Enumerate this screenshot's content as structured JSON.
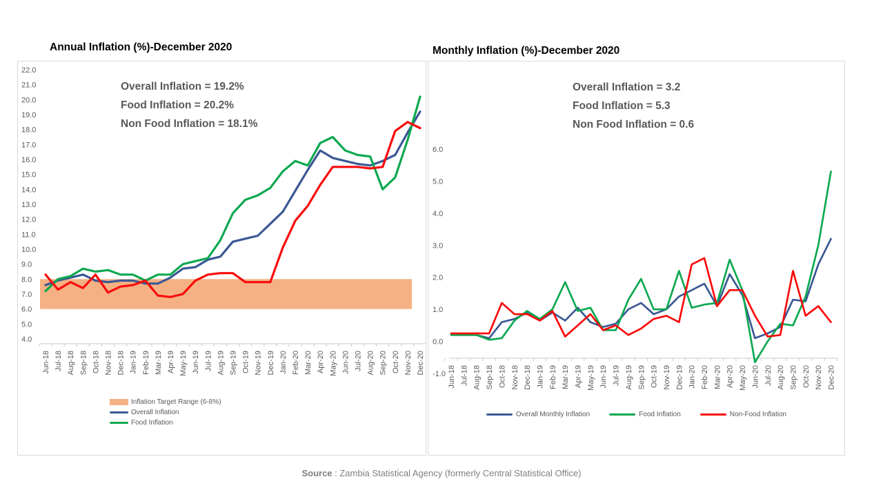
{
  "colors": {
    "overall": "#3A5894",
    "food": "#0DA850",
    "nonfood": "#FA0B0B",
    "band": "#F5B183",
    "axis_text": "#595959",
    "tick": "#C9C9C9",
    "border": "#D9D9D9",
    "annotation_text": "#595959",
    "source_text": "#7F7F7F"
  },
  "source": {
    "label": "Source",
    "text": " : Zambia Statistical Agency (formerly Central Statistical Office)"
  },
  "chart_data": [
    {
      "type": "line",
      "title": "Annual Inflation (%)-December 2020",
      "annotation_lines": [
        "Overall Inflation = 19.2%",
        "Food Inflation = 20.2%",
        "Non Food Inflation = 18.1%"
      ],
      "categories": [
        "Jun-18",
        "Jul-18",
        "Aug-18",
        "Sep-18",
        "Oct-18",
        "Nov-18",
        "Dec-18",
        "Jan-19",
        "Feb-19",
        "Mar-19",
        "Apr-19",
        "May-19",
        "Jun-19",
        "Jul-19",
        "Aug-19",
        "Sep-19",
        "Oct-19",
        "Nov-19",
        "Dec-19",
        "Jan-20",
        "Feb-20",
        "Mar-20",
        "Apr-20",
        "May-20",
        "Jun-20",
        "Jul-20",
        "Aug-20",
        "Sep-20",
        "Oct-20",
        "Nov-20",
        "Dec-20"
      ],
      "ylim": [
        4.0,
        22.0
      ],
      "ytick_step": 1.0,
      "ytick_labels": [
        "22.0",
        "21.0",
        "20.0",
        "19.0",
        "18.0",
        "17.0",
        "16.0",
        "15.0",
        "14.0",
        "13.0",
        "12.0",
        "11.0",
        "10.0",
        "9.0",
        "8.0",
        "7.0",
        "6.0",
        "5.0",
        "4.0"
      ],
      "grid": false,
      "legend_position": "bottom-left-column",
      "band": {
        "label": "Inflation Target Range (6-8%)",
        "from": 6.0,
        "to": 8.0
      },
      "series": [
        {
          "name": "Overall Inflation",
          "key": "overall",
          "in_legend": true,
          "values": [
            7.6,
            7.9,
            8.1,
            8.3,
            7.9,
            7.8,
            7.9,
            7.9,
            7.7,
            7.7,
            8.1,
            8.7,
            8.8,
            9.3,
            9.5,
            10.5,
            10.7,
            10.9,
            11.7,
            12.5,
            13.9,
            15.3,
            16.6,
            16.1,
            15.9,
            15.7,
            15.6,
            15.9,
            16.3,
            17.8,
            19.2
          ]
        },
        {
          "name": "Food Inflation",
          "key": "food",
          "in_legend": true,
          "values": [
            7.2,
            8.0,
            8.2,
            8.7,
            8.5,
            8.6,
            8.3,
            8.3,
            7.9,
            8.3,
            8.3,
            9.0,
            9.2,
            9.4,
            10.6,
            12.4,
            13.3,
            13.6,
            14.1,
            15.2,
            15.9,
            15.6,
            17.1,
            17.5,
            16.6,
            16.3,
            16.2,
            14.0,
            14.8,
            17.3,
            20.2
          ]
        },
        {
          "name": "Non Food Inflation",
          "key": "nonfood",
          "in_legend": false,
          "values": [
            8.3,
            7.3,
            7.8,
            7.4,
            8.3,
            7.1,
            7.5,
            7.6,
            7.9,
            6.9,
            6.8,
            7.0,
            7.9,
            8.3,
            8.4,
            8.4,
            7.8,
            7.8,
            7.8,
            10.1,
            11.9,
            12.9,
            14.3,
            15.5,
            15.5,
            15.5,
            15.4,
            15.5,
            17.9,
            18.5,
            18.1
          ]
        }
      ]
    },
    {
      "type": "line",
      "title": "Monthly Inflation (%)-December 2020",
      "annotation_lines": [
        "Overall Inflation = 3.2",
        "Food Inflation = 5.3",
        "Non Food Inflation = 0.6"
      ],
      "categories": [
        "Jun-18",
        "Jul-18",
        "Aug-18",
        "Sep-18",
        "Oct-18",
        "Nov-18",
        "Dec-18",
        "Jan-19",
        "Feb-19",
        "Mar-19",
        "Apr-19",
        "May-19",
        "Jun-19",
        "Jul-19",
        "Aug-19",
        "Sep-19",
        "Oct-19",
        "Nov-19",
        "Dec-19",
        "Jan-20",
        "Feb-20",
        "Mar-20",
        "Apr-20",
        "May-20",
        "Jun-20",
        "Jul-20",
        "Aug-20",
        "Sep-20",
        "Oct-20",
        "Nov-20",
        "Dec-20"
      ],
      "ylim": [
        -1.0,
        6.0
      ],
      "ytick_step": 1.0,
      "ytick_labels": [
        "6.0",
        "5.0",
        "4.0",
        "3.0",
        "2.0",
        "1.0",
        "0.0",
        "-1.0"
      ],
      "grid": false,
      "legend_position": "bottom-center-row",
      "band": null,
      "series": [
        {
          "name": "Overall Monthly Inflation",
          "key": "overall",
          "in_legend": true,
          "values": [
            0.2,
            0.2,
            0.2,
            0.1,
            0.6,
            0.7,
            0.9,
            0.65,
            0.9,
            0.65,
            1.05,
            0.6,
            0.45,
            0.55,
            1.0,
            1.2,
            0.85,
            1.0,
            1.4,
            1.6,
            1.8,
            1.1,
            2.1,
            1.45,
            0.1,
            0.25,
            0.45,
            1.3,
            1.25,
            2.4,
            3.2
          ]
        },
        {
          "name": "Food Inflation",
          "key": "food",
          "in_legend": true,
          "values": [
            0.2,
            0.2,
            0.2,
            0.05,
            0.1,
            0.65,
            0.95,
            0.7,
            1.0,
            1.85,
            0.95,
            1.05,
            0.35,
            0.35,
            1.3,
            1.95,
            1.0,
            1.0,
            2.2,
            1.05,
            1.15,
            1.2,
            2.55,
            1.6,
            -0.65,
            0.0,
            0.55,
            0.5,
            1.4,
            3.0,
            5.3
          ]
        },
        {
          "name": "Non-Food Inflation",
          "key": "nonfood",
          "in_legend": true,
          "values": [
            0.25,
            0.25,
            0.25,
            0.25,
            1.2,
            0.85,
            0.85,
            0.65,
            0.95,
            0.15,
            0.5,
            0.85,
            0.35,
            0.5,
            0.2,
            0.4,
            0.7,
            0.8,
            0.6,
            2.4,
            2.6,
            1.1,
            1.6,
            1.6,
            0.8,
            0.15,
            0.2,
            2.2,
            0.8,
            1.1,
            0.6
          ]
        }
      ]
    }
  ]
}
